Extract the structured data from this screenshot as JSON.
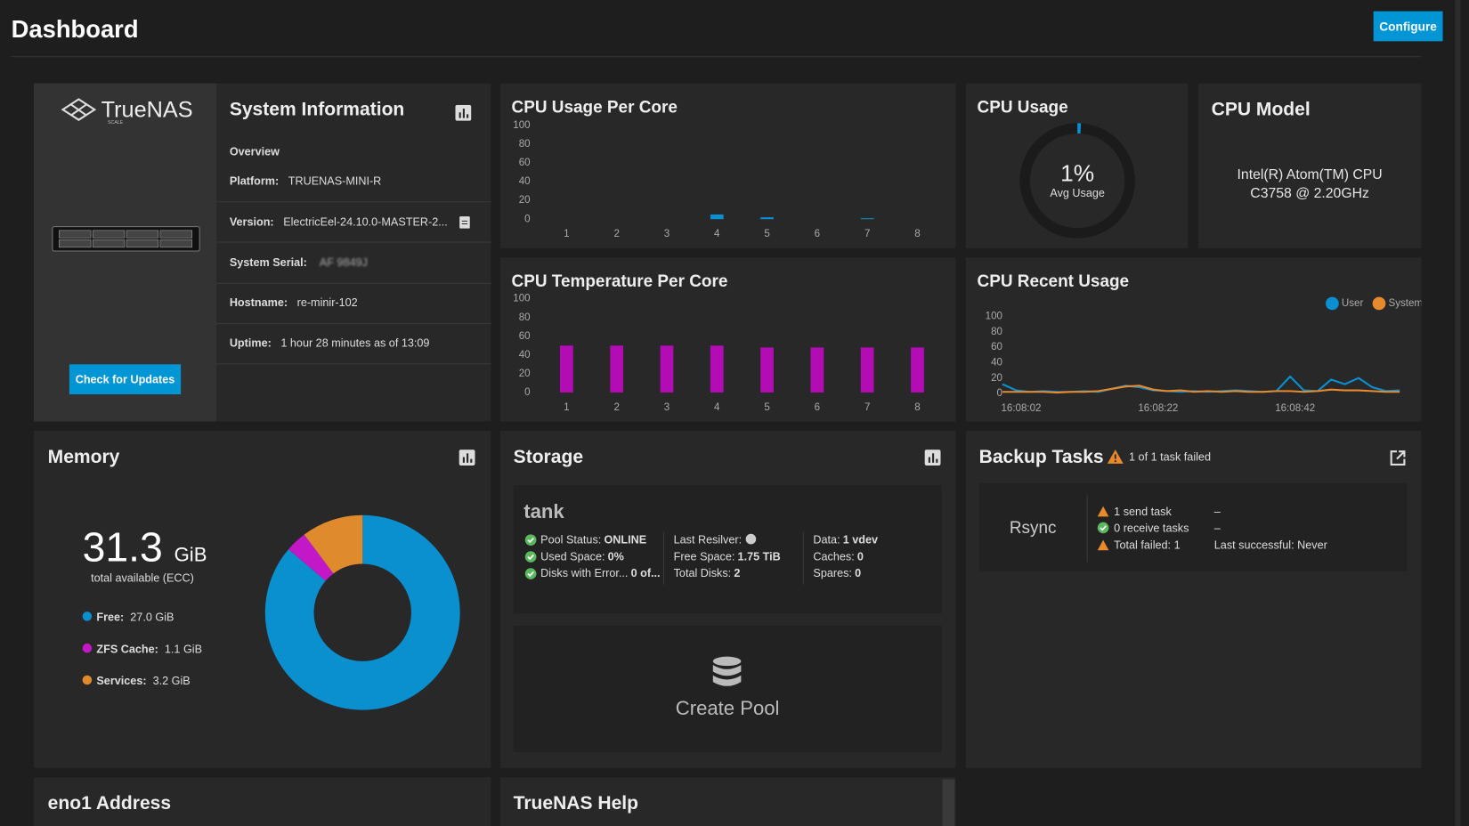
{
  "header": {
    "title": "Dashboard",
    "button": "Configure"
  },
  "system_info": {
    "logo": "TrueNAS",
    "logo_sub": "SCALE",
    "title": "System Information",
    "overview": "Overview",
    "rows": [
      {
        "label": "Platform:",
        "value": "TRUENAS-MINI-R"
      },
      {
        "label": "Version:",
        "value": "ElectricEel-24.10.0-MASTER-2..."
      },
      {
        "label": "System Serial:",
        "value": "AF 9849J"
      },
      {
        "label": "Hostname:",
        "value": "re-minir-102"
      },
      {
        "label": "Uptime:",
        "value": "1 hour 28 minutes as of 13:09"
      }
    ],
    "button": "Check for Updates"
  },
  "cpu_model": {
    "title": "CPU Model",
    "text": "Intel(R) Atom(TM) CPU C3758 @ 2.20GHz"
  },
  "memory": {
    "title": "Memory",
    "total": "31.3",
    "unit": "GiB",
    "subtitle": "total available (ECC)"
  },
  "storage": {
    "title": "Storage",
    "pool": "tank",
    "columns": [
      [
        {
          "label": "Pool Status:",
          "value": "ONLINE"
        },
        {
          "label": "Used Space:",
          "value": "0%"
        },
        {
          "label": "Disks with Error...",
          "value": "0 of..."
        }
      ],
      [
        {
          "label": "Last Resilver:",
          "value": null
        },
        {
          "label": "Free Space:",
          "value": "1.75 TiB"
        },
        {
          "label": "Total Disks:",
          "value": "2"
        }
      ],
      [
        {
          "label": "Data:",
          "value": "1 vdev"
        },
        {
          "label": "Caches:",
          "value": "0"
        },
        {
          "label": "Spares:",
          "value": "0"
        }
      ]
    ],
    "create": "Create Pool"
  },
  "backup": {
    "title": "Backup Tasks",
    "warning": "1 of 1 task failed",
    "name": "Rsync",
    "lines": [
      "1 send task",
      "0 receive tasks",
      "Total failed: 1"
    ],
    "side": [
      "–",
      "–",
      "Last successful: Never"
    ]
  },
  "bottom": {
    "left": "eno1 Address",
    "right": "TrueNAS Help"
  },
  "chart_data": [
    {
      "type": "bar",
      "title": "CPU Usage Per Core",
      "categories": [
        "1",
        "2",
        "3",
        "4",
        "5",
        "6",
        "7",
        "8"
      ],
      "values": [
        0,
        0,
        0,
        5,
        2,
        0,
        1,
        0
      ],
      "color": "#0a90d0",
      "ylim": [
        0,
        100
      ],
      "yticks": [
        0,
        20,
        40,
        60,
        80,
        100
      ]
    },
    {
      "type": "bar",
      "title": "CPU Temperature Per Core",
      "categories": [
        "1",
        "2",
        "3",
        "4",
        "5",
        "6",
        "7",
        "8"
      ],
      "values": [
        50,
        50,
        50,
        50,
        48,
        48,
        48,
        48
      ],
      "color": "#b40cb4",
      "ylim": [
        0,
        100
      ],
      "yticks": [
        0,
        20,
        40,
        60,
        80,
        100
      ]
    },
    {
      "type": "gauge",
      "title": "CPU Usage",
      "values": [
        1
      ],
      "value_labels": [
        "1%"
      ],
      "subtitle": "Avg Usage",
      "ylim": [
        0,
        100
      ],
      "color": "#0a90d0"
    },
    {
      "type": "line",
      "title": "CPU Recent Usage",
      "legend": "top-right",
      "categories": [
        "16:08:02",
        null,
        null,
        null,
        null,
        null,
        null,
        null,
        null,
        null,
        "16:08:22",
        null,
        null,
        null,
        null,
        null,
        null,
        null,
        null,
        null,
        "16:08:42",
        null,
        null,
        null,
        null,
        null,
        null,
        null,
        null,
        null
      ],
      "series": [
        {
          "name": "User",
          "color": "#0a90d0",
          "values": [
            12,
            4,
            2,
            3,
            2,
            2,
            3,
            2,
            6,
            10,
            8,
            4,
            3,
            2,
            3,
            2,
            3,
            4,
            3,
            2,
            3,
            22,
            4,
            3,
            18,
            12,
            20,
            8,
            3,
            4
          ]
        },
        {
          "name": "System",
          "color": "#e8892c",
          "values": [
            2,
            2,
            2,
            2,
            1,
            2,
            2,
            3,
            6,
            9,
            10,
            5,
            3,
            4,
            2,
            3,
            2,
            3,
            2,
            2,
            3,
            3,
            2,
            3,
            5,
            4,
            4,
            3,
            2,
            2
          ]
        }
      ],
      "ylim": [
        0,
        100
      ],
      "yticks": [
        0,
        20,
        40,
        60,
        80,
        100
      ]
    },
    {
      "type": "pie",
      "categories": [
        "Free:",
        "ZFS Cache:",
        "Services:"
      ],
      "values": [
        27.0,
        1.1,
        3.2
      ],
      "value_labels": [
        "27.0 GiB",
        "1.1 GiB",
        "3.2 GiB"
      ],
      "colors": [
        "#0a8fcf",
        "#c218c8",
        "#e08a2e"
      ]
    }
  ]
}
